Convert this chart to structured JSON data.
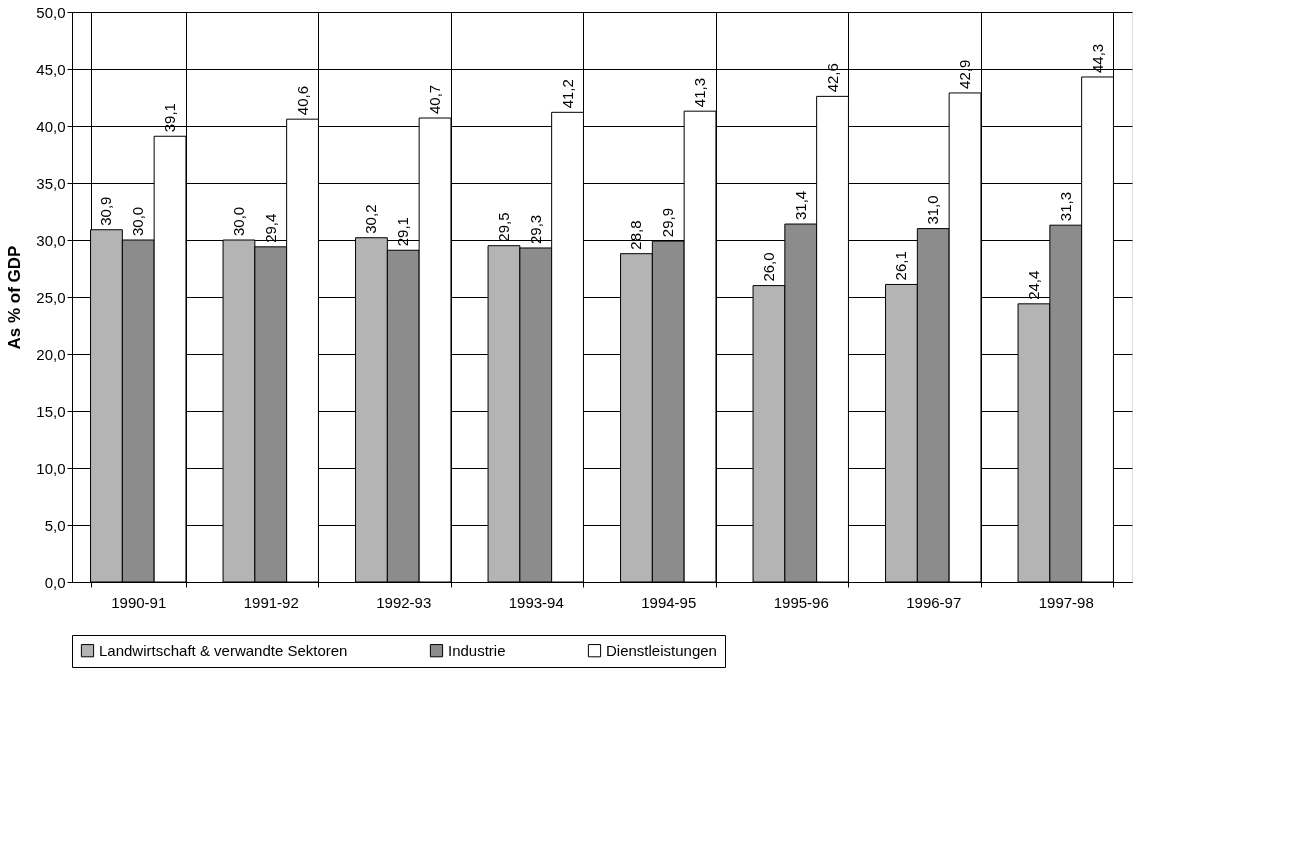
{
  "chart_data": {
    "type": "bar",
    "ylabel": "As % of GDP",
    "categories": [
      "1990-91",
      "1991-92",
      "1992-93",
      "1993-94",
      "1994-95",
      "1995-96",
      "1996-97",
      "1997-98"
    ],
    "series": [
      {
        "name": "Landwirtschaft & verwandte Sektoren",
        "color": "#b4b4b4",
        "values": [
          30.9,
          30.0,
          30.2,
          29.5,
          28.8,
          26.0,
          26.1,
          24.4
        ],
        "value_labels": [
          "30,9",
          "30,0",
          "30,2",
          "29,5",
          "28,8",
          "26,0",
          "26,1",
          "24,4"
        ]
      },
      {
        "name": "Industrie",
        "color": "#8c8c8c",
        "values": [
          30.0,
          29.4,
          29.1,
          29.3,
          29.9,
          31.4,
          31.0,
          31.3
        ],
        "value_labels": [
          "30,0",
          "29,4",
          "29,1",
          "29,3",
          "29,9",
          "31,4",
          "31,0",
          "31,3"
        ]
      },
      {
        "name": "Dienstleistungen",
        "color": "#ffffff",
        "values": [
          39.1,
          40.6,
          40.7,
          41.2,
          41.3,
          42.6,
          42.9,
          44.3
        ],
        "value_labels": [
          "39,1",
          "40,6",
          "40,7",
          "41,2",
          "41,3",
          "42,6",
          "42,9",
          "44,3"
        ]
      }
    ],
    "ylim": [
      0,
      50
    ],
    "yticks": [
      {
        "value": 0,
        "label": "0,0"
      },
      {
        "value": 5,
        "label": "5,0"
      },
      {
        "value": 10,
        "label": "10,0"
      },
      {
        "value": 15,
        "label": "15,0"
      },
      {
        "value": 20,
        "label": "20,0"
      },
      {
        "value": 25,
        "label": "25,0"
      },
      {
        "value": 30,
        "label": "30,0"
      },
      {
        "value": 35,
        "label": "35,0"
      },
      {
        "value": 40,
        "label": "40,0"
      },
      {
        "value": 45,
        "label": "45,0"
      },
      {
        "value": 50,
        "label": "50,0"
      }
    ],
    "grid": true,
    "legend": "bottom"
  }
}
